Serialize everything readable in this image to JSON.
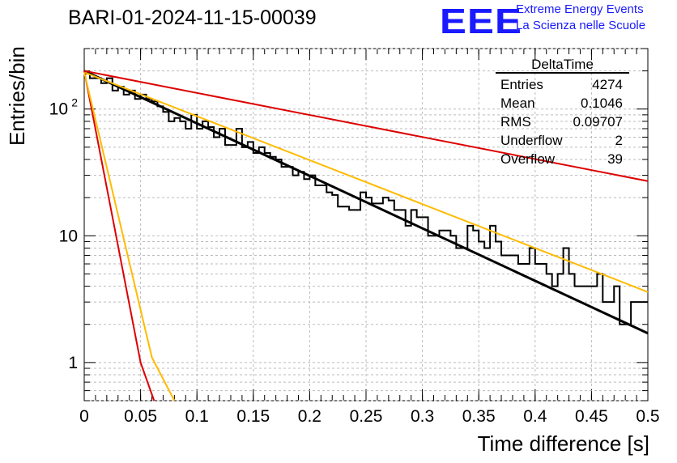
{
  "run_title": "BARI-01-2024-11-15-00039",
  "logo": {
    "text": "EEE",
    "line1": "Extreme Energy Events",
    "line2": "La Scienza nelle Scuole"
  },
  "stats": {
    "title": "DeltaTime",
    "rows": [
      {
        "label": "Entries",
        "value": "4274"
      },
      {
        "label": "Mean",
        "value": "0.1046"
      },
      {
        "label": "RMS",
        "value": "0.09707"
      },
      {
        "label": "Underflow",
        "value": "2"
      },
      {
        "label": "Overflow",
        "value": "39"
      }
    ]
  },
  "colors": {
    "histogram": "#000000",
    "fit": "#000000",
    "red_curve": "#dd0000",
    "orange_curve": "#ffbb00",
    "logo": "#1a1aff"
  },
  "chart_data": {
    "type": "line",
    "xlabel": "Time difference [s]",
    "ylabel": "Entries/bin",
    "xlim": [
      0,
      0.5
    ],
    "ylim": [
      0.5,
      300
    ],
    "yscale": "log",
    "grid": true,
    "x_ticks": [
      "0",
      "0.05",
      "0.1",
      "0.15",
      "0.2",
      "0.25",
      "0.3",
      "0.35",
      "0.4",
      "0.45",
      "0.5"
    ],
    "y_ticks": [
      "1",
      "10",
      "10^2"
    ],
    "histogram": {
      "name": "DeltaTime",
      "bin_width": 0.005,
      "values": [
        190,
        175,
        175,
        160,
        175,
        140,
        150,
        130,
        140,
        120,
        130,
        120,
        115,
        105,
        95,
        80,
        85,
        80,
        70,
        90,
        70,
        80,
        72,
        60,
        70,
        52,
        52,
        70,
        50,
        55,
        45,
        50,
        45,
        42,
        40,
        35,
        35,
        30,
        32,
        28,
        30,
        25,
        25,
        22,
        21,
        17,
        17,
        16,
        16,
        22,
        20,
        18,
        18,
        20,
        19,
        16,
        16,
        12,
        16,
        14,
        14,
        10,
        10,
        11,
        11,
        10,
        8,
        8,
        12,
        11,
        9,
        8,
        12,
        9,
        7,
        7,
        7,
        6,
        6,
        8,
        6,
        6,
        5,
        4,
        5,
        8,
        5,
        4,
        4,
        4,
        4,
        5,
        3,
        3,
        4,
        2,
        2,
        3,
        3,
        3
      ]
    },
    "curves": [
      {
        "name": "fit",
        "color": "#000000",
        "x": [
          0,
          0.5
        ],
        "y": [
          200,
          1.7
        ]
      },
      {
        "name": "red_slow",
        "color": "#dd0000",
        "x": [
          0,
          0.5
        ],
        "y": [
          200,
          27
        ]
      },
      {
        "name": "orange_slow",
        "color": "#ffbb00",
        "x": [
          0,
          0.5
        ],
        "y": [
          195,
          3.6
        ]
      },
      {
        "name": "red_fast",
        "color": "#dd0000",
        "x": [
          0,
          0.05,
          0.062
        ],
        "y": [
          200,
          1.0,
          0.5
        ]
      },
      {
        "name": "orange_fast",
        "color": "#ffbb00",
        "x": [
          0,
          0.06,
          0.08
        ],
        "y": [
          195,
          1.1,
          0.5
        ]
      }
    ]
  }
}
